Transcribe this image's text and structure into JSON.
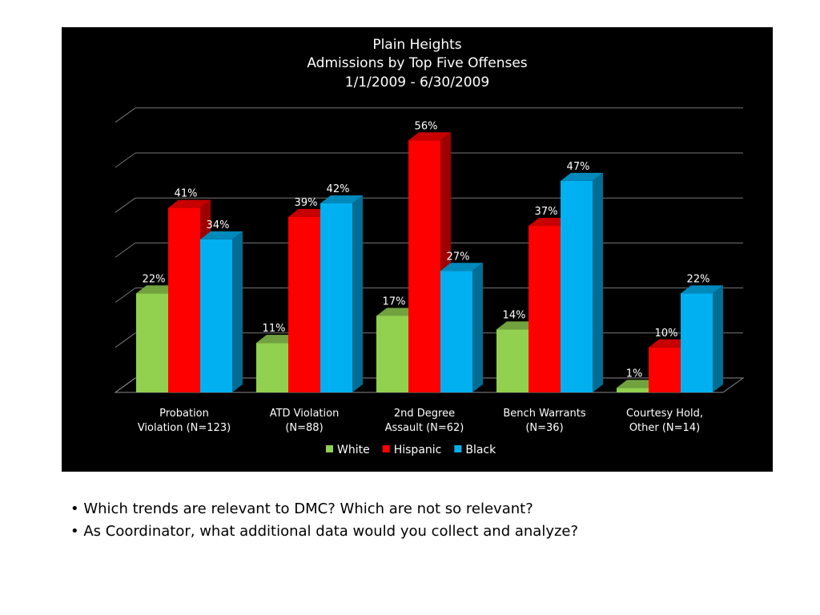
{
  "chart_data": {
    "type": "bar",
    "title": [
      "Plain Heights",
      "Admissions by Top Five Offenses",
      "1/1/2009 - 6/30/2009"
    ],
    "categories": [
      [
        "Probation",
        "Violation (N=123)"
      ],
      [
        "ATD Violation",
        "(N=88)"
      ],
      [
        "2nd Degree",
        "Assault (N=62)"
      ],
      [
        "Bench Warrants",
        "(N=36)"
      ],
      [
        "Courtesy Hold,",
        "Other (N=14)"
      ]
    ],
    "series": [
      {
        "name": "White",
        "color": "#92d050",
        "values": [
          22,
          11,
          17,
          14,
          1
        ]
      },
      {
        "name": "Hispanic",
        "color": "#ff0000",
        "values": [
          41,
          39,
          56,
          37,
          10
        ]
      },
      {
        "name": "Black",
        "color": "#00b0f0",
        "values": [
          34,
          42,
          27,
          47,
          22
        ]
      }
    ],
    "value_suffix": "%",
    "ylim": [
      0,
      60
    ],
    "y_step": 10,
    "grid": true,
    "legend": "bottom"
  },
  "questions": [
    "• Which trends are relevant to DMC? Which are not so relevant?",
    "• As Coordinator, what additional data would you collect and analyze?"
  ]
}
